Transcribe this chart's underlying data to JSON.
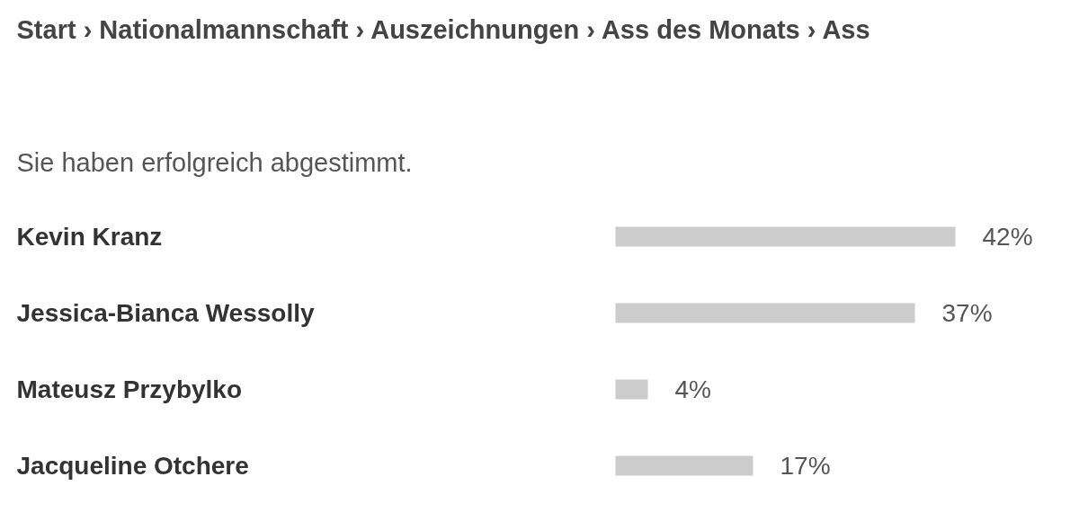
{
  "chart_data": {
    "type": "bar",
    "orientation": "horizontal",
    "subtitle": "Sie haben erfolgreich abgestimmt.",
    "annotations": [
      "Start › Nationalmannschaft › Auszeichnungen › Ass des Monats › Ass"
    ],
    "categories": [
      "Kevin Kranz",
      "Jessica-Bianca Wessolly",
      "Mateusz Przybylko",
      "Jacqueline Otchere"
    ],
    "values": [
      42,
      37,
      4,
      17
    ],
    "value_labels": [
      "42%",
      "37%",
      "4%",
      "17%"
    ],
    "color": "#cccccc"
  }
}
